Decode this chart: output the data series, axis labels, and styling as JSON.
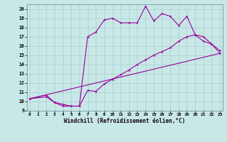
{
  "background_color": "#c8e8e8",
  "line_color": "#990099",
  "xlim": [
    -0.3,
    23.3
  ],
  "ylim": [
    9,
    20.5
  ],
  "xticks": [
    0,
    1,
    2,
    3,
    4,
    5,
    6,
    7,
    8,
    9,
    10,
    11,
    12,
    13,
    14,
    15,
    16,
    17,
    18,
    19,
    20,
    21,
    22,
    23
  ],
  "yticks": [
    9,
    10,
    11,
    12,
    13,
    14,
    15,
    16,
    17,
    18,
    19,
    20
  ],
  "xlabel": "Windchill (Refroidissement éolien,°C)",
  "line1_x": [
    0,
    2,
    3,
    4,
    5,
    6,
    7,
    8,
    9,
    10,
    11,
    12,
    13,
    14,
    15,
    16,
    17,
    18,
    19,
    20,
    21,
    22,
    23
  ],
  "line1_y": [
    10.3,
    10.7,
    9.9,
    9.5,
    9.5,
    9.5,
    17.0,
    17.5,
    18.8,
    19.0,
    18.5,
    18.5,
    18.5,
    20.3,
    18.7,
    19.5,
    19.2,
    18.2,
    19.2,
    17.2,
    16.5,
    16.2,
    15.5
  ],
  "line2_x": [
    0,
    2,
    3,
    4,
    5,
    6,
    7,
    8,
    9,
    10,
    11,
    12,
    13,
    14,
    15,
    16,
    17,
    18,
    19,
    20,
    21,
    22,
    23
  ],
  "line2_y": [
    10.3,
    10.5,
    9.9,
    9.7,
    9.5,
    9.5,
    11.2,
    11.1,
    11.9,
    12.4,
    12.9,
    13.4,
    14.0,
    14.5,
    15.0,
    15.4,
    15.8,
    16.5,
    17.0,
    17.2,
    17.0,
    16.2,
    15.2
  ],
  "line3_x": [
    0,
    23
  ],
  "line3_y": [
    10.3,
    15.2
  ],
  "grid_color": "#aacccc",
  "spine_color": "#668888"
}
